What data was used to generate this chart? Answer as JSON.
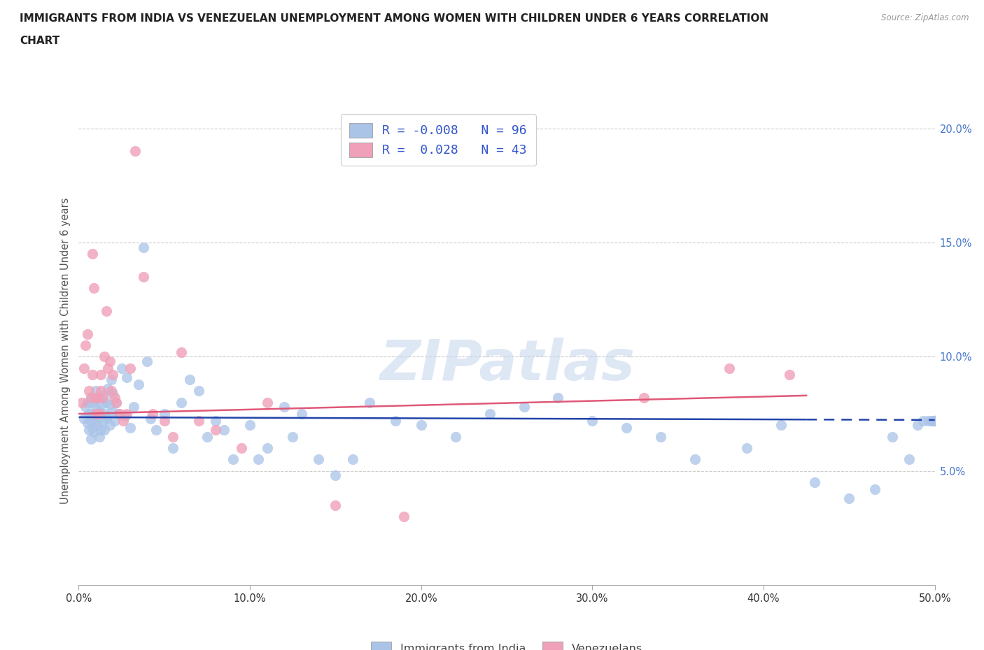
{
  "title_line1": "IMMIGRANTS FROM INDIA VS VENEZUELAN UNEMPLOYMENT AMONG WOMEN WITH CHILDREN UNDER 6 YEARS CORRELATION",
  "title_line2": "CHART",
  "source": "Source: ZipAtlas.com",
  "ylabel": "Unemployment Among Women with Children Under 6 years",
  "xlim": [
    0.0,
    0.5
  ],
  "ylim": [
    0.0,
    0.205
  ],
  "india_color": "#aac4e8",
  "venezuela_color": "#f0a0b8",
  "india_line_color": "#2244aa",
  "venezuela_line_color": "#e05878",
  "watermark": "ZIPatlas",
  "background_color": "#ffffff",
  "grid_color": "#cccccc",
  "right_tick_color": "#4477cc",
  "india_scatter_x": [
    0.003,
    0.004,
    0.005,
    0.005,
    0.006,
    0.006,
    0.007,
    0.007,
    0.007,
    0.008,
    0.008,
    0.008,
    0.009,
    0.009,
    0.01,
    0.01,
    0.01,
    0.011,
    0.011,
    0.012,
    0.012,
    0.013,
    0.013,
    0.014,
    0.014,
    0.015,
    0.015,
    0.016,
    0.016,
    0.017,
    0.017,
    0.018,
    0.018,
    0.019,
    0.02,
    0.02,
    0.021,
    0.022,
    0.023,
    0.025,
    0.027,
    0.028,
    0.03,
    0.032,
    0.035,
    0.038,
    0.04,
    0.042,
    0.045,
    0.05,
    0.055,
    0.06,
    0.065,
    0.07,
    0.075,
    0.08,
    0.085,
    0.09,
    0.1,
    0.105,
    0.11,
    0.12,
    0.125,
    0.13,
    0.14,
    0.15,
    0.16,
    0.17,
    0.185,
    0.2,
    0.22,
    0.24,
    0.26,
    0.28,
    0.3,
    0.32,
    0.34,
    0.36,
    0.39,
    0.41,
    0.43,
    0.45,
    0.465,
    0.475,
    0.485,
    0.49,
    0.493,
    0.496,
    0.498,
    0.499,
    0.5,
    0.5,
    0.5,
    0.5,
    0.5,
    0.5
  ],
  "india_scatter_y": [
    0.073,
    0.078,
    0.071,
    0.08,
    0.068,
    0.075,
    0.072,
    0.082,
    0.064,
    0.069,
    0.075,
    0.08,
    0.074,
    0.067,
    0.078,
    0.072,
    0.085,
    0.07,
    0.082,
    0.076,
    0.065,
    0.079,
    0.068,
    0.083,
    0.072,
    0.075,
    0.068,
    0.08,
    0.073,
    0.086,
    0.074,
    0.079,
    0.07,
    0.09,
    0.084,
    0.076,
    0.072,
    0.08,
    0.075,
    0.095,
    0.074,
    0.091,
    0.069,
    0.078,
    0.088,
    0.148,
    0.098,
    0.073,
    0.068,
    0.075,
    0.06,
    0.08,
    0.09,
    0.085,
    0.065,
    0.072,
    0.068,
    0.055,
    0.07,
    0.055,
    0.06,
    0.078,
    0.065,
    0.075,
    0.055,
    0.048,
    0.055,
    0.08,
    0.072,
    0.07,
    0.065,
    0.075,
    0.078,
    0.082,
    0.072,
    0.069,
    0.065,
    0.055,
    0.06,
    0.07,
    0.045,
    0.038,
    0.042,
    0.065,
    0.055,
    0.07,
    0.072,
    0.072,
    0.072,
    0.072,
    0.072,
    0.072,
    0.072,
    0.072,
    0.072,
    0.072
  ],
  "venezuela_scatter_x": [
    0.002,
    0.003,
    0.004,
    0.005,
    0.006,
    0.007,
    0.008,
    0.008,
    0.009,
    0.01,
    0.01,
    0.011,
    0.012,
    0.013,
    0.013,
    0.014,
    0.015,
    0.016,
    0.017,
    0.018,
    0.019,
    0.02,
    0.021,
    0.022,
    0.024,
    0.026,
    0.028,
    0.03,
    0.033,
    0.038,
    0.043,
    0.05,
    0.055,
    0.06,
    0.07,
    0.08,
    0.095,
    0.11,
    0.15,
    0.19,
    0.33,
    0.38,
    0.415
  ],
  "venezuela_scatter_y": [
    0.08,
    0.095,
    0.105,
    0.11,
    0.085,
    0.082,
    0.145,
    0.092,
    0.13,
    0.082,
    0.075,
    0.082,
    0.075,
    0.085,
    0.092,
    0.082,
    0.1,
    0.12,
    0.095,
    0.098,
    0.085,
    0.092,
    0.082,
    0.08,
    0.075,
    0.072,
    0.075,
    0.095,
    0.19,
    0.135,
    0.075,
    0.072,
    0.065,
    0.102,
    0.072,
    0.068,
    0.06,
    0.08,
    0.035,
    0.03,
    0.082,
    0.095,
    0.092
  ],
  "india_line_x": [
    0.0,
    0.425,
    0.425,
    0.5
  ],
  "india_line_y_start": 0.0735,
  "india_line_y_end": 0.0725,
  "india_line_slope": -0.0024,
  "india_line_intercept": 0.0735,
  "venez_line_x_start": 0.0,
  "venez_line_x_end": 0.425,
  "venez_line_y_start": 0.075,
  "venez_line_y_end": 0.083
}
